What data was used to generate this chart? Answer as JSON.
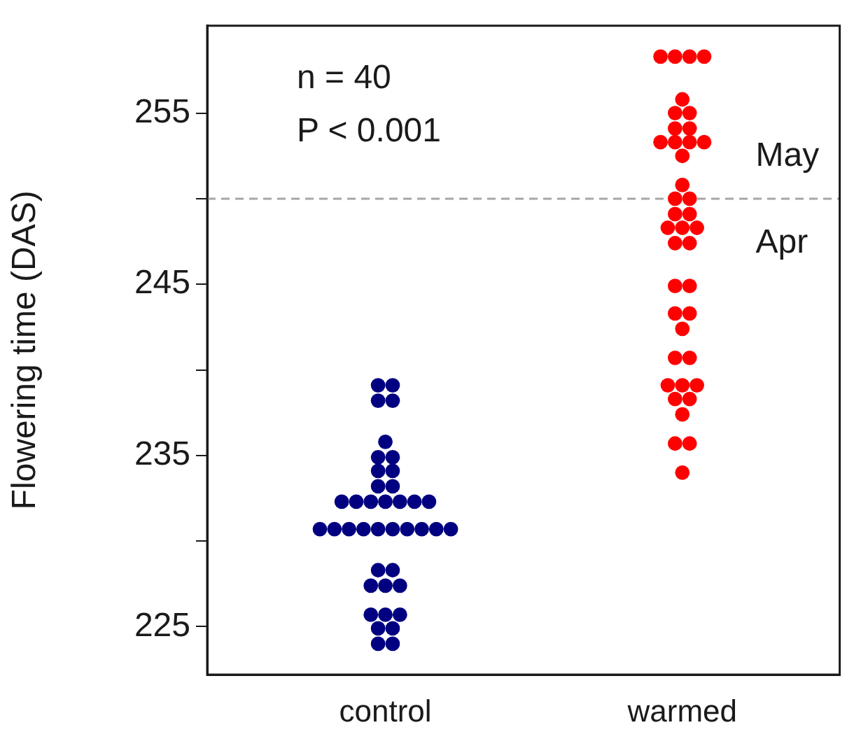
{
  "chart_data": {
    "type": "scatter",
    "ylabel": "Flowering time (DAS)",
    "categories": [
      "control",
      "warmed"
    ],
    "ylim": [
      222.2,
      260.1
    ],
    "yticks": [
      225,
      {
        "value": 230,
        "label": null
      },
      235,
      {
        "value": 240,
        "label": null
      },
      245,
      {
        "value": 250,
        "label": null
      },
      255
    ],
    "grid": false,
    "legend": false,
    "marker": "circle",
    "series": [
      {
        "color": "#000080",
        "x": [
          "control",
          "control",
          "control",
          "control",
          "control",
          "control",
          "control",
          "control",
          "control",
          "control",
          "control",
          "control",
          "control",
          "control",
          "control",
          "control",
          "control",
          "control",
          "control",
          "control",
          "control",
          "control",
          "control",
          "control",
          "control",
          "control",
          "control",
          "control",
          "control",
          "control",
          "control",
          "control",
          "control",
          "control",
          "control",
          "control",
          "control",
          "control",
          "control",
          "control"
        ],
        "values": [
          239.1,
          239.1,
          238.2,
          238.2,
          235.8,
          234.9,
          234.9,
          234.1,
          234.1,
          233.2,
          233.2,
          232.3,
          232.3,
          232.3,
          232.3,
          232.3,
          232.3,
          232.3,
          230.7,
          230.7,
          230.7,
          230.7,
          230.7,
          230.7,
          230.7,
          230.7,
          230.7,
          230.7,
          228.3,
          228.3,
          227.4,
          227.4,
          227.4,
          225.7,
          225.7,
          225.7,
          224.9,
          224.9,
          224.0,
          224.0
        ]
      },
      {
        "color": "#ff0000",
        "x": [
          "warmed",
          "warmed",
          "warmed",
          "warmed",
          "warmed",
          "warmed",
          "warmed",
          "warmed",
          "warmed",
          "warmed",
          "warmed",
          "warmed",
          "warmed",
          "warmed",
          "warmed",
          "warmed",
          "warmed",
          "warmed",
          "warmed",
          "warmed",
          "warmed",
          "warmed",
          "warmed",
          "warmed",
          "warmed",
          "warmed",
          "warmed",
          "warmed",
          "warmed",
          "warmed",
          "warmed",
          "warmed",
          "warmed",
          "warmed",
          "warmed",
          "warmed",
          "warmed",
          "warmed",
          "warmed",
          "warmed"
        ],
        "values": [
          258.3,
          258.3,
          258.3,
          258.3,
          255.8,
          255.0,
          255.0,
          254.1,
          254.1,
          253.3,
          253.3,
          253.3,
          253.3,
          252.5,
          250.8,
          250.0,
          250.0,
          249.1,
          249.1,
          248.3,
          248.3,
          248.3,
          247.4,
          247.4,
          244.9,
          244.9,
          243.3,
          243.3,
          242.4,
          240.7,
          240.7,
          239.1,
          239.1,
          239.1,
          238.3,
          238.3,
          237.4,
          235.7,
          235.7,
          234.0
        ]
      }
    ],
    "ref_lines": [
      {
        "axis": "y",
        "value": 250,
        "color": "#a6a6a6",
        "line_style": "dashed"
      }
    ],
    "annotations": [
      "n = 40",
      "P < 0.001",
      "May",
      "Apr"
    ]
  }
}
